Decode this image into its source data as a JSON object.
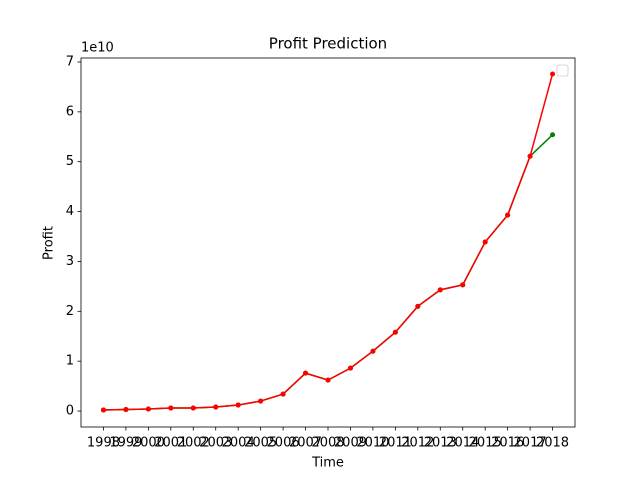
{
  "chart_data": {
    "type": "line",
    "title": "Profit Prediction",
    "x_label": "Time",
    "y_label": "Profit",
    "y_offset_label": "1e10",
    "x": [
      1998,
      1999,
      2000,
      2001,
      2002,
      2003,
      2004,
      2005,
      2006,
      2007,
      2008,
      2009,
      2010,
      2011,
      2012,
      2013,
      2014,
      2015,
      2016,
      2017,
      2018
    ],
    "series": [
      {
        "color": "#008000",
        "values": [
          0.02,
          0.03,
          0.04,
          0.06,
          0.06,
          0.08,
          0.12,
          0.2,
          0.34,
          0.76,
          0.62,
          0.86,
          1.2,
          1.58,
          2.1,
          2.43,
          2.53,
          3.39,
          3.93,
          5.11,
          5.54
        ]
      },
      {
        "color": "#ff0000",
        "values": [
          0.02,
          0.03,
          0.04,
          0.06,
          0.06,
          0.08,
          0.12,
          0.2,
          0.34,
          0.76,
          0.62,
          0.86,
          1.2,
          1.58,
          2.1,
          2.43,
          2.53,
          3.39,
          3.93,
          5.11,
          6.76
        ]
      }
    ],
    "xlim": [
      1997.0,
      2019.0
    ],
    "ylim": [
      -0.32,
      7.08
    ],
    "xticks": [
      1998,
      1999,
      2000,
      2001,
      2002,
      2003,
      2004,
      2005,
      2006,
      2007,
      2008,
      2009,
      2010,
      2011,
      2012,
      2013,
      2014,
      2015,
      2016,
      2017,
      2018
    ],
    "yticks": [
      0,
      1,
      2,
      3,
      4,
      5,
      6,
      7
    ],
    "grid": false,
    "legend": "upper right"
  }
}
